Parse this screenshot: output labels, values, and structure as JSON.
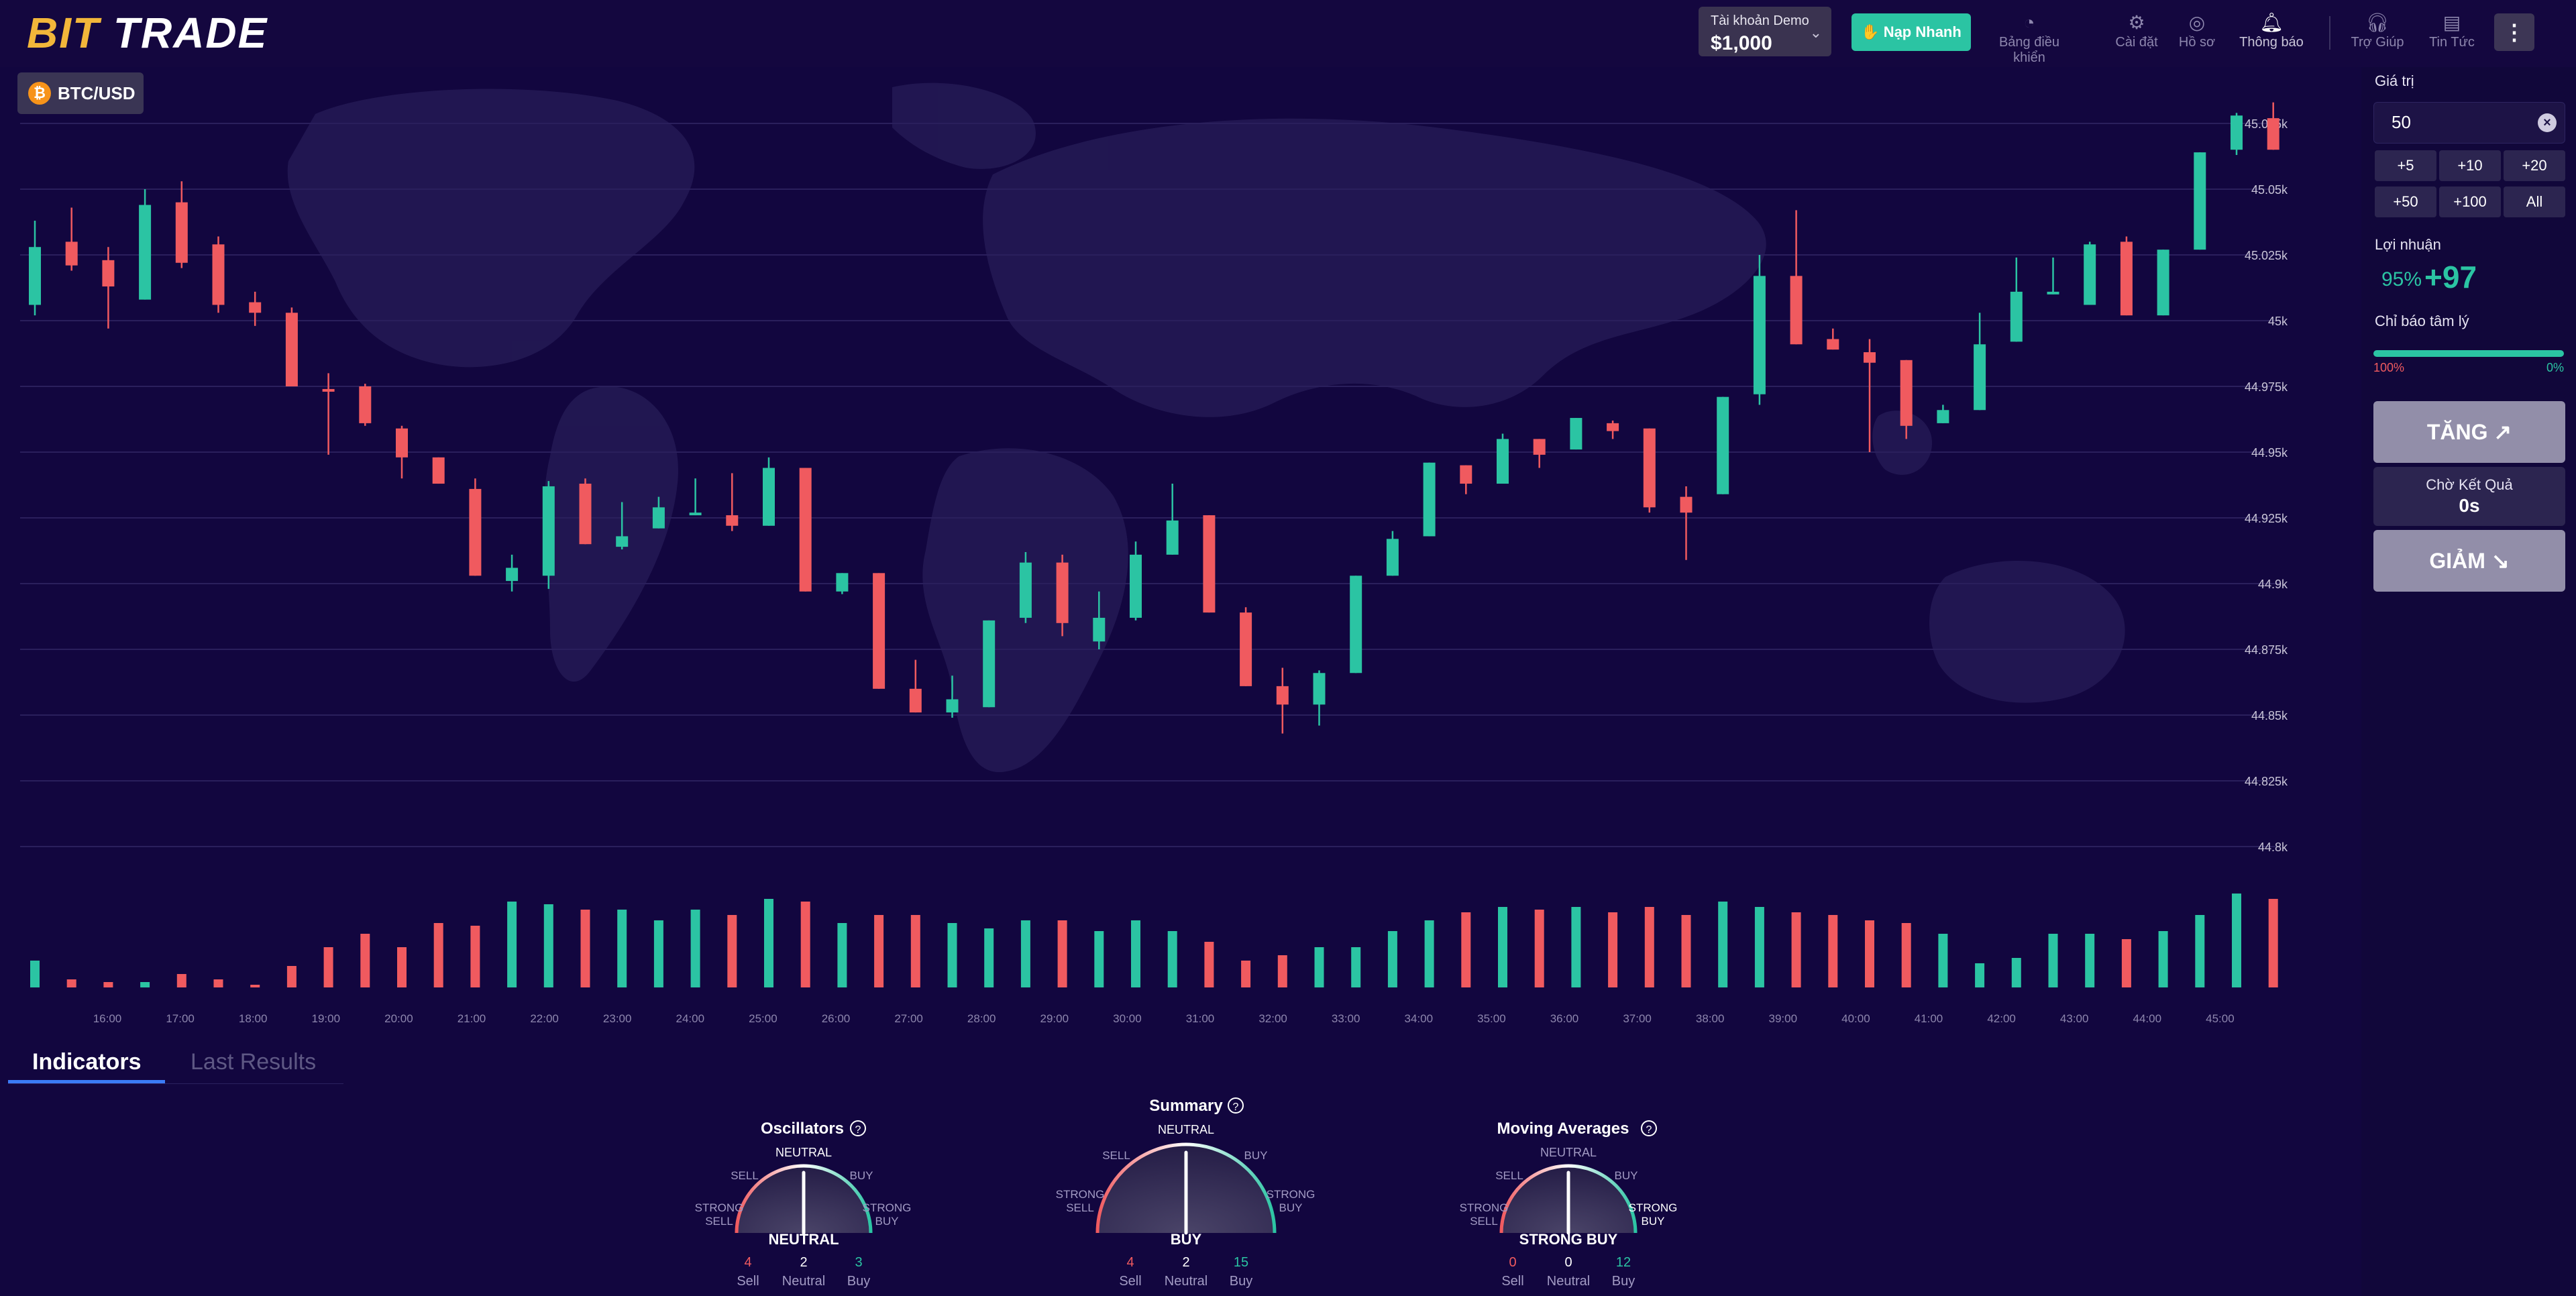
{
  "header": {
    "logo_part1": "BIT",
    "logo_part2": "TRADE",
    "demo_label": "Tài khoản Demo",
    "demo_balance": "$1,000",
    "deposit_label": "Nạp Nhanh",
    "nav": [
      {
        "label": "Bảng điều khiển",
        "icon": "dashboard-icon"
      },
      {
        "label": "Cài đặt",
        "icon": "gear-icon"
      },
      {
        "label": "Hồ sơ",
        "icon": "profile-icon"
      },
      {
        "label": "Thông báo",
        "icon": "bell-icon"
      },
      {
        "label": "Trợ Giúp",
        "icon": "headset-icon"
      },
      {
        "label": "Tin Tức",
        "icon": "news-icon"
      }
    ],
    "more_label": "⋮"
  },
  "chart": {
    "pair": "BTC/USD",
    "colors": {
      "up": "#2bc4a3",
      "down": "#f05a5f",
      "grid": "#2a1f5c"
    }
  },
  "chart_data": {
    "type": "candlestick",
    "y_ticks": [
      "45.075k",
      "45.05k",
      "45.025k",
      "45k",
      "44.975k",
      "44.95k",
      "44.925k",
      "44.9k",
      "44.875k",
      "44.85k",
      "44.825k",
      "44.8k"
    ],
    "ylim": [
      44.79,
      45.08
    ],
    "x_ticks": [
      "16:00",
      "17:00",
      "18:00",
      "19:00",
      "20:00",
      "21:00",
      "22:00",
      "23:00",
      "24:00",
      "25:00",
      "26:00",
      "27:00",
      "28:00",
      "29:00",
      "30:00",
      "31:00",
      "32:00",
      "33:00",
      "34:00",
      "35:00",
      "36:00",
      "37:00",
      "38:00",
      "39:00",
      "40:00",
      "41:00",
      "42:00",
      "43:00",
      "44:00",
      "45:00"
    ],
    "candles": [
      {
        "o": 45.006,
        "c": 45.028,
        "h": 45.038,
        "l": 45.002
      },
      {
        "o": 45.03,
        "c": 45.021,
        "h": 45.043,
        "l": 45.019
      },
      {
        "o": 45.023,
        "c": 45.013,
        "h": 45.028,
        "l": 44.997
      },
      {
        "o": 45.008,
        "c": 45.044,
        "h": 45.05,
        "l": 45.008
      },
      {
        "o": 45.045,
        "c": 45.022,
        "h": 45.053,
        "l": 45.02
      },
      {
        "o": 45.029,
        "c": 45.006,
        "h": 45.032,
        "l": 45.003
      },
      {
        "o": 45.007,
        "c": 45.003,
        "h": 45.011,
        "l": 44.998
      },
      {
        "o": 45.003,
        "c": 44.975,
        "h": 45.005,
        "l": 44.975
      },
      {
        "o": 44.974,
        "c": 44.973,
        "h": 44.98,
        "l": 44.949
      },
      {
        "o": 44.975,
        "c": 44.961,
        "h": 44.976,
        "l": 44.96
      },
      {
        "o": 44.959,
        "c": 44.948,
        "h": 44.96,
        "l": 44.94
      },
      {
        "o": 44.948,
        "c": 44.938,
        "h": 44.948,
        "l": 44.938
      },
      {
        "o": 44.936,
        "c": 44.903,
        "h": 44.94,
        "l": 44.903
      },
      {
        "o": 44.901,
        "c": 44.906,
        "h": 44.911,
        "l": 44.897
      },
      {
        "o": 44.903,
        "c": 44.937,
        "h": 44.939,
        "l": 44.898
      },
      {
        "o": 44.938,
        "c": 44.915,
        "h": 44.94,
        "l": 44.915
      },
      {
        "o": 44.914,
        "c": 44.918,
        "h": 44.931,
        "l": 44.913
      },
      {
        "o": 44.921,
        "c": 44.929,
        "h": 44.933,
        "l": 44.921
      },
      {
        "o": 44.927,
        "c": 44.927,
        "h": 44.94,
        "l": 44.926
      },
      {
        "o": 44.926,
        "c": 44.922,
        "h": 44.942,
        "l": 44.92
      },
      {
        "o": 44.922,
        "c": 44.944,
        "h": 44.948,
        "l": 44.922
      },
      {
        "o": 44.944,
        "c": 44.897,
        "h": 44.944,
        "l": 44.897
      },
      {
        "o": 44.897,
        "c": 44.904,
        "h": 44.904,
        "l": 44.896
      },
      {
        "o": 44.904,
        "c": 44.86,
        "h": 44.904,
        "l": 44.86
      },
      {
        "o": 44.86,
        "c": 44.851,
        "h": 44.871,
        "l": 44.851
      },
      {
        "o": 44.851,
        "c": 44.856,
        "h": 44.865,
        "l": 44.849
      },
      {
        "o": 44.853,
        "c": 44.886,
        "h": 44.886,
        "l": 44.853
      },
      {
        "o": 44.887,
        "c": 44.908,
        "h": 44.912,
        "l": 44.885
      },
      {
        "o": 44.908,
        "c": 44.885,
        "h": 44.911,
        "l": 44.88
      },
      {
        "o": 44.878,
        "c": 44.887,
        "h": 44.897,
        "l": 44.875
      },
      {
        "o": 44.887,
        "c": 44.911,
        "h": 44.916,
        "l": 44.886
      },
      {
        "o": 44.911,
        "c": 44.924,
        "h": 44.938,
        "l": 44.911
      },
      {
        "o": 44.926,
        "c": 44.889,
        "h": 44.926,
        "l": 44.889
      },
      {
        "o": 44.889,
        "c": 44.861,
        "h": 44.891,
        "l": 44.861
      },
      {
        "o": 44.861,
        "c": 44.854,
        "h": 44.868,
        "l": 44.843
      },
      {
        "o": 44.854,
        "c": 44.866,
        "h": 44.867,
        "l": 44.846
      },
      {
        "o": 44.866,
        "c": 44.903,
        "h": 44.903,
        "l": 44.866
      },
      {
        "o": 44.903,
        "c": 44.917,
        "h": 44.92,
        "l": 44.903
      },
      {
        "o": 44.918,
        "c": 44.946,
        "h": 44.946,
        "l": 44.918
      },
      {
        "o": 44.945,
        "c": 44.938,
        "h": 44.945,
        "l": 44.934
      },
      {
        "o": 44.938,
        "c": 44.955,
        "h": 44.957,
        "l": 44.938
      },
      {
        "o": 44.955,
        "c": 44.949,
        "h": 44.955,
        "l": 44.944
      },
      {
        "o": 44.951,
        "c": 44.963,
        "h": 44.963,
        "l": 44.951
      },
      {
        "o": 44.961,
        "c": 44.958,
        "h": 44.962,
        "l": 44.955
      },
      {
        "o": 44.959,
        "c": 44.929,
        "h": 44.959,
        "l": 44.927
      },
      {
        "o": 44.933,
        "c": 44.927,
        "h": 44.937,
        "l": 44.909
      },
      {
        "o": 44.934,
        "c": 44.971,
        "h": 44.971,
        "l": 44.934
      },
      {
        "o": 44.972,
        "c": 45.017,
        "h": 45.025,
        "l": 44.968
      },
      {
        "o": 45.017,
        "c": 44.991,
        "h": 45.042,
        "l": 44.991
      },
      {
        "o": 44.993,
        "c": 44.989,
        "h": 44.997,
        "l": 44.989
      },
      {
        "o": 44.988,
        "c": 44.984,
        "h": 44.993,
        "l": 44.95
      },
      {
        "o": 44.985,
        "c": 44.96,
        "h": 44.985,
        "l": 44.955
      },
      {
        "o": 44.961,
        "c": 44.966,
        "h": 44.968,
        "l": 44.961
      },
      {
        "o": 44.966,
        "c": 44.991,
        "h": 45.003,
        "l": 44.966
      },
      {
        "o": 44.992,
        "c": 45.011,
        "h": 45.024,
        "l": 44.992
      },
      {
        "o": 45.011,
        "c": 45.011,
        "h": 45.024,
        "l": 45.01
      },
      {
        "o": 45.006,
        "c": 45.029,
        "h": 45.03,
        "l": 45.006
      },
      {
        "o": 45.03,
        "c": 45.002,
        "h": 45.032,
        "l": 45.002
      },
      {
        "o": 45.002,
        "c": 45.027,
        "h": 45.027,
        "l": 45.002
      },
      {
        "o": 45.027,
        "c": 45.064,
        "h": 45.064,
        "l": 45.027
      },
      {
        "o": 45.065,
        "c": 45.078,
        "h": 45.079,
        "l": 45.063
      },
      {
        "o": 45.077,
        "c": 45.065,
        "h": 45.083,
        "l": 45.065
      }
    ],
    "volumes": [
      20,
      6,
      4,
      4,
      10,
      6,
      2,
      16,
      30,
      40,
      30,
      48,
      46,
      64,
      62,
      58,
      58,
      50,
      58,
      54,
      66,
      64,
      48,
      54,
      54,
      48,
      44,
      50,
      50,
      42,
      50,
      42,
      34,
      20,
      24,
      30,
      30,
      42,
      50,
      56,
      60,
      58,
      60,
      56,
      60,
      54,
      64,
      60,
      56,
      54,
      50,
      48,
      40,
      18,
      22,
      40,
      40,
      36,
      42,
      54,
      70,
      66
    ],
    "y_grid": true,
    "legend": "none"
  },
  "right_panel": {
    "amount_label": "Giá trị",
    "amount_value": "50",
    "quick_buttons": [
      "+5",
      "+10",
      "+20",
      "+50",
      "+100",
      "All"
    ],
    "profit_label": "Lợi nhuận",
    "profit_pct": "95%",
    "profit_value": "+97",
    "sentiment_label": "Chỉ báo tâm lý",
    "sentiment_left": "100%",
    "sentiment_right": "0%",
    "up_label": "TĂNG",
    "wait_label": "Chờ Kết Quả",
    "wait_value": "0s",
    "down_label": "GIẢM"
  },
  "bottom": {
    "tab_indicators": "Indicators",
    "tab_results": "Last Results",
    "gauges": [
      {
        "title": "Oscillators",
        "verdict": "NEUTRAL",
        "needle": 0.5,
        "sell": "4",
        "neutral": "2",
        "buy": "3",
        "sell_label": "Sell",
        "neutral_label": "Neutral",
        "buy_label": "Buy"
      },
      {
        "title": "Summary",
        "verdict": "BUY",
        "needle": 0.5,
        "sell": "4",
        "neutral": "2",
        "buy": "15",
        "sell_label": "Sell",
        "neutral_label": "Neutral",
        "buy_label": "Buy"
      },
      {
        "title": "Moving Averages",
        "verdict": "STRONG BUY",
        "needle": 0.5,
        "sell": "0",
        "neutral": "0",
        "buy": "12",
        "sell_label": "Sell",
        "neutral_label": "Neutral",
        "buy_label": "Buy"
      }
    ],
    "gauge_scale": {
      "neutral": "NEUTRAL",
      "sell": "SELL",
      "buy": "BUY",
      "strong_sell_1": "STRONG",
      "strong_sell_2": "SELL",
      "strong_buy_1": "STRONG",
      "strong_buy_2": "BUY"
    },
    "help_icon": "?"
  }
}
